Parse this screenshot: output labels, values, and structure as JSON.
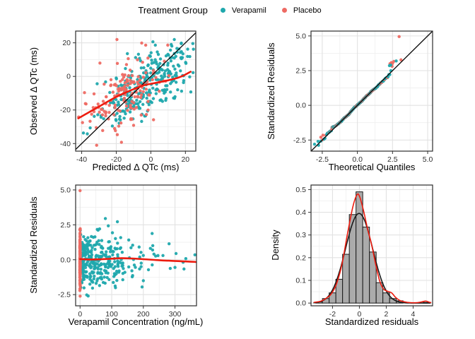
{
  "legend": {
    "title": "Treatment Group",
    "items": [
      {
        "label": "Verapamil",
        "color": "#1FA8AD"
      },
      {
        "label": "Placebo",
        "color": "#EE6A63"
      }
    ]
  },
  "colors": {
    "verapamil_point": "#1FA8AD",
    "placebo_point": "#EE6A63",
    "smooth_line": "#ED1C0F",
    "identity_line": "#0A0A0A",
    "grid_major": "#E2E2E2",
    "grid_minor": "#EFEFEF",
    "panel_border": "#2B2B2B",
    "bar_fill": "#ABABAB",
    "bar_stroke": "#1A1A1A"
  },
  "chart_data": {
    "panels": [
      {
        "name": "observed-vs-predicted",
        "type": "scatter",
        "xlabel": "Predicted Δ QTc (ms)",
        "ylabel": "Observed Δ QTc (ms)",
        "xlim": [
          -43.5,
          26
        ],
        "ylim": [
          -44.5,
          27
        ],
        "xticks": [
          -40,
          -20,
          0,
          20
        ],
        "xtick_labels": [
          "-40",
          "-20",
          "0",
          "20"
        ],
        "yticks": [
          -40,
          -20,
          0,
          20
        ],
        "ytick_labels": [
          "-40",
          "-20",
          "0",
          "20"
        ],
        "identity_line": true,
        "series": [
          {
            "name": "Verapamil",
            "color": "#1FA8AD",
            "n": 320,
            "gen": "linear",
            "x_mean": -2,
            "x_sd": 13,
            "slope": 0.52,
            "intercept": -3.2,
            "noise_sd": 8.5,
            "seed": 11
          },
          {
            "name": "Placebo",
            "color": "#EE6A63",
            "n": 155,
            "gen": "linear",
            "x_mean": -16,
            "x_sd": 12,
            "slope": 0.52,
            "intercept": -3.2,
            "noise_sd": 9,
            "seed": 23
          }
        ],
        "extra_points": [
          {
            "x": -19.6,
            "y": 22,
            "series": 1
          },
          {
            "x": -17,
            "y": -39.2,
            "series": 1
          },
          {
            "x": 1.2,
            "y": 20.6,
            "series": 0
          },
          {
            "x": 2.6,
            "y": 18.6,
            "series": 0
          }
        ],
        "smooth": {
          "color": "#ED1C0F",
          "width": 2.6,
          "points": [
            [
              -42,
              -25
            ],
            [
              -36,
              -21.5
            ],
            [
              -30,
              -18
            ],
            [
              -25,
              -15
            ],
            [
              -20,
              -12.2
            ],
            [
              -15,
              -9.8
            ],
            [
              -10,
              -7.6
            ],
            [
              -5,
              -5.6
            ],
            [
              0,
              -4.4
            ],
            [
              5,
              -3.4
            ],
            [
              10,
              -2.3
            ],
            [
              15,
              -1
            ],
            [
              19,
              0.6
            ],
            [
              23,
              2.8
            ]
          ]
        }
      },
      {
        "name": "qq-plot",
        "type": "qq",
        "xlabel": "Theoretical Quantiles",
        "ylabel": "Standardized Residuals",
        "xlim": [
          -3.3,
          5.35
        ],
        "ylim": [
          -3.3,
          5.35
        ],
        "xticks": [
          -2.5,
          0.0,
          2.5,
          5.0
        ],
        "xtick_labels": [
          "-2.5",
          "0.0",
          "2.5",
          "5.0"
        ],
        "yticks": [
          -2.5,
          0.0,
          2.5,
          5.0
        ],
        "ytick_labels": [
          "-2.5",
          "0.0",
          "2.5",
          "5.0"
        ],
        "identity_line": true,
        "qq": {
          "n": 520,
          "seed": 5,
          "placebo_fraction": 0.33,
          "colors": [
            "#1FA8AD",
            "#EE6A63"
          ]
        },
        "extra_points": [
          {
            "x": 2.97,
            "y": 4.95,
            "series": 1
          },
          {
            "x": 2.32,
            "y": 3.0,
            "series": 1
          },
          {
            "x": 2.42,
            "y": 3.08,
            "series": 1
          },
          {
            "x": 2.5,
            "y": 3.02,
            "series": 1
          },
          {
            "x": 2.37,
            "y": 2.9,
            "series": 0
          },
          {
            "x": 2.28,
            "y": 2.86,
            "series": 0
          },
          {
            "x": -2.45,
            "y": -2.15,
            "series": 1
          },
          {
            "x": -2.6,
            "y": -2.3,
            "series": 1
          },
          {
            "x": -2.8,
            "y": -2.6,
            "series": 0
          },
          {
            "x": -3.05,
            "y": -2.8,
            "series": 0
          }
        ]
      },
      {
        "name": "residuals-vs-concentration",
        "type": "scatter",
        "xlabel": "Verapamil Concentration (ng/mL)",
        "ylabel": "Standardized Residuals",
        "xlim": [
          -14,
          368
        ],
        "ylim": [
          -3.3,
          5.35
        ],
        "xticks": [
          0,
          100,
          200,
          300
        ],
        "xtick_labels": [
          "0",
          "100",
          "200",
          "300"
        ],
        "yticks": [
          -2.5,
          0.0,
          2.5,
          5.0
        ],
        "ytick_labels": [
          "-2.5",
          "0.0",
          "2.5",
          "5.0"
        ],
        "identity_line": false,
        "series": [
          {
            "name": "Verapamil",
            "color": "#1FA8AD",
            "n": 330,
            "gen": "conc",
            "exp_mean": 70,
            "x_max": 365,
            "y_mean": -0.08,
            "y_sd": 0.95,
            "seed": 41
          },
          {
            "name": "Placebo",
            "color": "#EE6A63",
            "n": 150,
            "gen": "zero_x",
            "y_sd": 1.05,
            "seed": 57
          }
        ],
        "extra_points": [
          {
            "x": 0,
            "y": 4.95,
            "series": 1
          },
          {
            "x": 363,
            "y": 0.35,
            "series": 0
          },
          {
            "x": 300,
            "y": -0.55,
            "series": 0
          },
          {
            "x": 262,
            "y": 0.3,
            "series": 0
          },
          {
            "x": 285,
            "y": -0.62,
            "series": 0
          },
          {
            "x": 196,
            "y": -1.95,
            "series": 0
          },
          {
            "x": 200,
            "y": -1.5,
            "series": 0
          },
          {
            "x": 118,
            "y": 2.72,
            "series": 0
          },
          {
            "x": 80,
            "y": 2.95,
            "series": 0
          }
        ],
        "smooth": {
          "color": "#ED1C0F",
          "width": 2.6,
          "points": [
            [
              0,
              0.05
            ],
            [
              30,
              0.02
            ],
            [
              60,
              0.03
            ],
            [
              95,
              0.07
            ],
            [
              130,
              0.11
            ],
            [
              165,
              0.09
            ],
            [
              200,
              0.04
            ],
            [
              240,
              -0.02
            ],
            [
              280,
              -0.07
            ],
            [
              320,
              -0.11
            ],
            [
              365,
              -0.16
            ]
          ]
        }
      },
      {
        "name": "residual-histogram",
        "type": "histogram",
        "xlabel": "Standardized residuals",
        "ylabel": "Density",
        "xlim": [
          -3.6,
          5.45
        ],
        "ylim": [
          -0.012,
          0.52
        ],
        "xticks": [
          -2,
          0,
          2,
          4
        ],
        "xtick_labels": [
          "-2",
          "0",
          "2",
          "4"
        ],
        "yticks": [
          0.0,
          0.1,
          0.2,
          0.3,
          0.4,
          0.5
        ],
        "ytick_labels": [
          "0.0",
          "0.1",
          "0.2",
          "0.3",
          "0.4",
          "0.5"
        ],
        "bin_width": 0.5,
        "bar_fill": "#ABABAB",
        "bar_stroke": "#1A1A1A",
        "bars": [
          {
            "center": -3.0,
            "h": 0.005
          },
          {
            "center": -2.5,
            "h": 0.02
          },
          {
            "center": -2.0,
            "h": 0.045
          },
          {
            "center": -1.5,
            "h": 0.105
          },
          {
            "center": -1.0,
            "h": 0.215
          },
          {
            "center": -0.5,
            "h": 0.39
          },
          {
            "center": 0.0,
            "h": 0.49
          },
          {
            "center": 0.5,
            "h": 0.335
          },
          {
            "center": 1.0,
            "h": 0.225
          },
          {
            "center": 1.5,
            "h": 0.09
          },
          {
            "center": 2.0,
            "h": 0.045
          },
          {
            "center": 2.5,
            "h": 0.02
          },
          {
            "center": 3.0,
            "h": 0.01
          },
          {
            "center": 5.0,
            "h": 0.003
          }
        ],
        "normal_curve": {
          "mu": -0.02,
          "sigma": 1.01,
          "color": "#1A1A1A",
          "width": 1.6
        },
        "kde_curve": {
          "color": "#ED1C0F",
          "width": 1.6,
          "points": [
            [
              -3.4,
              0.003
            ],
            [
              -2.9,
              0.008
            ],
            [
              -2.5,
              0.02
            ],
            [
              -2.1,
              0.04
            ],
            [
              -1.7,
              0.085
            ],
            [
              -1.3,
              0.17
            ],
            [
              -0.9,
              0.3
            ],
            [
              -0.5,
              0.42
            ],
            [
              -0.2,
              0.475
            ],
            [
              0.0,
              0.472
            ],
            [
              0.3,
              0.41
            ],
            [
              0.6,
              0.33
            ],
            [
              0.9,
              0.26
            ],
            [
              1.2,
              0.175
            ],
            [
              1.5,
              0.1
            ],
            [
              1.8,
              0.062
            ],
            [
              2.1,
              0.052
            ],
            [
              2.4,
              0.045
            ],
            [
              2.7,
              0.025
            ],
            [
              3.0,
              0.012
            ],
            [
              3.4,
              0.005
            ],
            [
              3.8,
              0.002
            ],
            [
              4.3,
              0.002
            ],
            [
              4.7,
              0.006
            ],
            [
              4.95,
              0.009
            ],
            [
              5.2,
              0.004
            ],
            [
              5.35,
              0.002
            ]
          ]
        }
      }
    ]
  }
}
